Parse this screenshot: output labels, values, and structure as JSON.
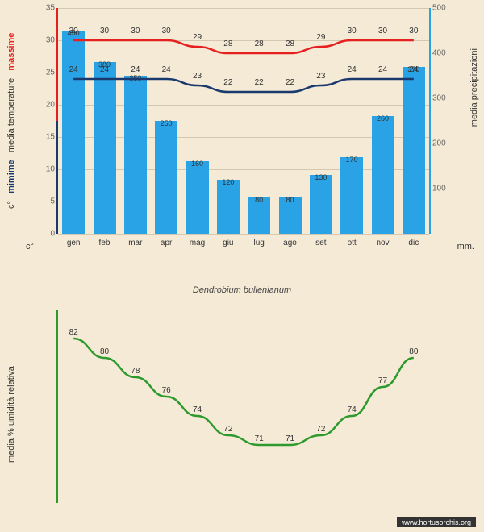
{
  "subtitle": "Dendrobium bullenianum",
  "watermark": "www.hortusorchis.org",
  "chart1": {
    "months": [
      "gen",
      "feb",
      "mar",
      "apr",
      "mag",
      "giu",
      "lug",
      "ago",
      "set",
      "ott",
      "nov",
      "dic"
    ],
    "precip": [
      450,
      380,
      350,
      250,
      160,
      120,
      80,
      80,
      130,
      170,
      260,
      370
    ],
    "tmax": [
      30,
      30,
      30,
      30,
      29,
      28,
      28,
      28,
      29,
      30,
      30,
      30
    ],
    "tmin": [
      24,
      24,
      24,
      24,
      23,
      22,
      22,
      22,
      23,
      24,
      24,
      24
    ],
    "temp_ylim": [
      0,
      35
    ],
    "temp_step": 5,
    "precip_ylim": [
      0,
      500
    ],
    "precip_step": 100,
    "bar_color": "#29a3e6",
    "max_color": "#e62020",
    "min_color": "#1a3a6e",
    "bg": "#f5ead6",
    "y_left_label_c": "c°",
    "y_left_label_min": "mimime",
    "y_left_label_mid": "media temperature",
    "y_left_label_max": "massime",
    "y_right_label": "media precipitazioni",
    "mm_label": "mm."
  },
  "chart2": {
    "humidity": [
      82,
      80,
      78,
      76,
      74,
      72,
      71,
      71,
      72,
      74,
      77,
      80
    ],
    "ylim": [
      65,
      85
    ],
    "line_color": "#2e9a2e",
    "y_label": "media % umidità relativa"
  }
}
